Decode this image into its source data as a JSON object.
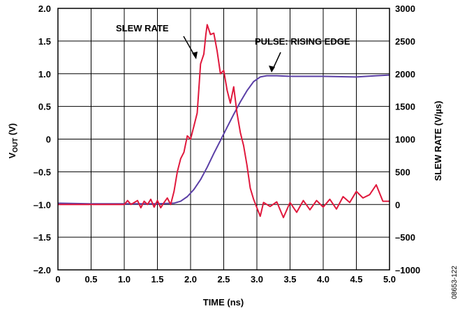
{
  "chart_data": {
    "type": "line",
    "xlabel": "TIME (ns)",
    "ylabel_left": {
      "main": "V",
      "sub": "OUT",
      "rest": " (V)"
    },
    "ylabel_right": "SLEW RATE (V/µs)",
    "xlim": [
      0,
      5
    ],
    "ylim_left": [
      -2,
      2
    ],
    "ylim_right": [
      -1000,
      3000
    ],
    "x_ticks": [
      0,
      0.5,
      1,
      1.5,
      2,
      2.5,
      3,
      3.5,
      4,
      4.5,
      5
    ],
    "x_tick_labels": [
      "0",
      "0.5",
      "1.0",
      "1.5",
      "2.0",
      "2.5",
      "3.0",
      "3.5",
      "4.0",
      "4.5",
      "5.0"
    ],
    "y_left_ticks": [
      -2,
      -1.5,
      -1,
      -0.5,
      0,
      0.5,
      1,
      1.5,
      2
    ],
    "y_left_tick_labels": [
      "–2.0",
      "–1.5",
      "–1.0",
      "–0.5",
      "0",
      "0.5",
      "1.0",
      "1.5",
      "2.0"
    ],
    "y_right_ticks": [
      -1000,
      -500,
      0,
      500,
      1000,
      1500,
      2000,
      2500,
      3000
    ],
    "y_right_tick_labels": [
      "–1000",
      "–500",
      "0",
      "500",
      "1000",
      "1500",
      "2000",
      "2500",
      "3000"
    ],
    "grid": true,
    "annotations": [
      {
        "text": "SLEW RATE",
        "series": "slew"
      },
      {
        "text": "PULSE: RISING EDGE",
        "series": "pulse"
      }
    ],
    "figure_id": "08653-122",
    "series": [
      {
        "key": "pulse",
        "axis": "left",
        "color": "#5b3fa6",
        "x": [
          0,
          0.5,
          1.0,
          1.5,
          1.75,
          1.85,
          1.95,
          2.05,
          2.15,
          2.25,
          2.35,
          2.45,
          2.55,
          2.65,
          2.75,
          2.85,
          2.95,
          3.05,
          3.15,
          3.3,
          3.5,
          4.0,
          4.5,
          4.8,
          5.0
        ],
        "y": [
          -0.98,
          -0.99,
          -0.99,
          -0.99,
          -0.98,
          -0.95,
          -0.88,
          -0.77,
          -0.62,
          -0.43,
          -0.22,
          -0.02,
          0.18,
          0.38,
          0.57,
          0.74,
          0.88,
          0.95,
          0.97,
          0.97,
          0.96,
          0.96,
          0.95,
          0.97,
          0.98
        ]
      },
      {
        "key": "slew",
        "axis": "right",
        "color": "#e0183c",
        "x": [
          0,
          0.5,
          1.0,
          1.05,
          1.1,
          1.2,
          1.25,
          1.3,
          1.35,
          1.4,
          1.45,
          1.5,
          1.55,
          1.6,
          1.65,
          1.7,
          1.75,
          1.8,
          1.85,
          1.9,
          1.95,
          2.0,
          2.05,
          2.1,
          2.13,
          2.15,
          2.2,
          2.23,
          2.25,
          2.3,
          2.35,
          2.4,
          2.45,
          2.5,
          2.55,
          2.6,
          2.65,
          2.7,
          2.75,
          2.8,
          2.85,
          2.9,
          2.95,
          3.0,
          3.05,
          3.1,
          3.2,
          3.3,
          3.4,
          3.5,
          3.6,
          3.7,
          3.8,
          3.9,
          4.0,
          4.1,
          4.2,
          4.3,
          4.4,
          4.5,
          4.6,
          4.7,
          4.8,
          4.9,
          5.0
        ],
        "y": [
          0,
          0,
          0,
          60,
          0,
          60,
          -50,
          50,
          0,
          80,
          -40,
          60,
          -50,
          30,
          100,
          0,
          200,
          500,
          700,
          800,
          1050,
          1000,
          1200,
          1400,
          1850,
          2150,
          2300,
          2600,
          2750,
          2600,
          2620,
          2350,
          2000,
          2050,
          1750,
          1550,
          1800,
          1400,
          1100,
          900,
          600,
          250,
          80,
          -50,
          -180,
          30,
          -30,
          40,
          -200,
          30,
          -120,
          60,
          -80,
          60,
          -40,
          80,
          -70,
          120,
          30,
          200,
          100,
          150,
          300,
          50,
          50
        ]
      }
    ]
  }
}
